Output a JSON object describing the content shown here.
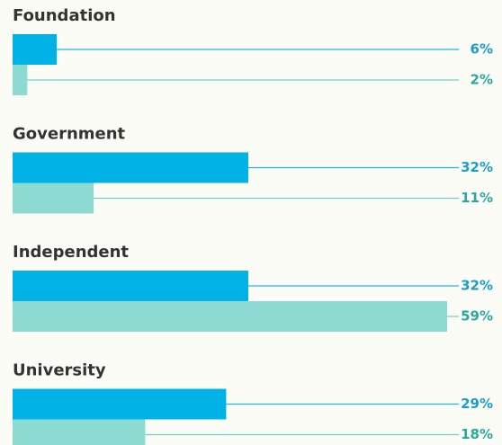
{
  "chart_data": {
    "type": "bar",
    "categories": [
      "Foundation",
      "Government",
      "Independent",
      "University"
    ],
    "series": [
      {
        "color": "#00b2e6",
        "values": [
          6,
          32,
          32,
          29
        ],
        "value_labels": [
          "6%",
          "32%",
          "32%",
          "29%"
        ]
      },
      {
        "color": "#8cdad2",
        "values": [
          2,
          11,
          59,
          18
        ],
        "value_labels": [
          "2%",
          "11%",
          "59%",
          "18%"
        ]
      }
    ]
  }
}
